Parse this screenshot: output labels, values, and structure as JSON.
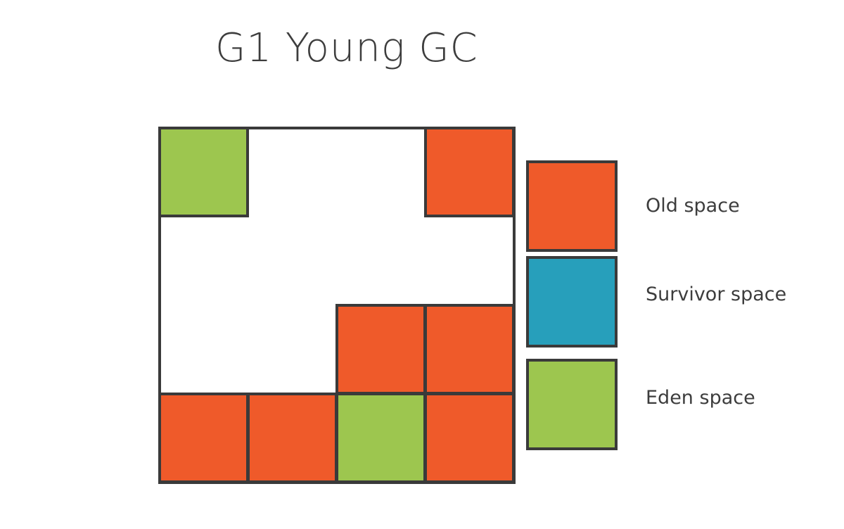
{
  "title": "G1 Young GC",
  "colors": {
    "old": "#ef5a2a",
    "survivor": "#279fbb",
    "eden": "#9dc64f",
    "free": "#ffffff",
    "border": "#3a3a3a"
  },
  "heap": {
    "rows": 4,
    "cols": 4,
    "regions": [
      [
        "eden",
        "free",
        "free",
        "old"
      ],
      [
        "free",
        "free",
        "free",
        "free"
      ],
      [
        "free",
        "free",
        "old",
        "old"
      ],
      [
        "old",
        "old",
        "eden",
        "old"
      ]
    ]
  },
  "legend": [
    {
      "type": "old",
      "label": "Old space"
    },
    {
      "type": "survivor",
      "label": "Survivor space"
    },
    {
      "type": "eden",
      "label": "Eden space"
    }
  ]
}
